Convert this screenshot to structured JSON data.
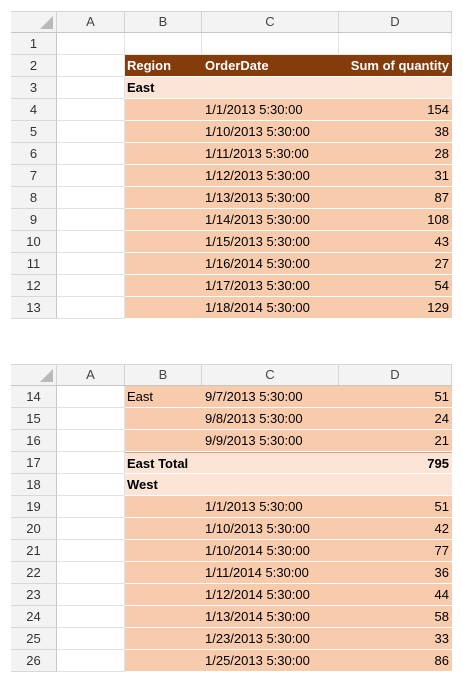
{
  "columns": [
    "A",
    "B",
    "C",
    "D"
  ],
  "top": {
    "header_row": {
      "num": "2",
      "region": "Region",
      "orderdate": "OrderDate",
      "sum": "Sum of quantity"
    },
    "empty_row_num": "1",
    "group_row": {
      "num": "3",
      "label": "East"
    },
    "rows": [
      {
        "num": "4",
        "date": "1/1/2013 5:30:00",
        "qty": "154"
      },
      {
        "num": "5",
        "date": "1/10/2013 5:30:00",
        "qty": "38"
      },
      {
        "num": "6",
        "date": "1/11/2013 5:30:00",
        "qty": "28"
      },
      {
        "num": "7",
        "date": "1/12/2013 5:30:00",
        "qty": "31"
      },
      {
        "num": "8",
        "date": "1/13/2013 5:30:00",
        "qty": "87"
      },
      {
        "num": "9",
        "date": "1/14/2013 5:30:00",
        "qty": "108"
      },
      {
        "num": "10",
        "date": "1/15/2013 5:30:00",
        "qty": "43"
      },
      {
        "num": "11",
        "date": "1/16/2014 5:30:00",
        "qty": "27"
      },
      {
        "num": "12",
        "date": "1/17/2013 5:30:00",
        "qty": "54"
      },
      {
        "num": "13",
        "date": "1/18/2014 5:30:00",
        "qty": "129"
      }
    ]
  },
  "bottom": {
    "rows_east": [
      {
        "num": "14",
        "region": "East",
        "date": "9/7/2013 5:30:00",
        "qty": "51"
      },
      {
        "num": "15",
        "region": "",
        "date": "9/8/2013 5:30:00",
        "qty": "24"
      },
      {
        "num": "16",
        "region": "",
        "date": "9/9/2013 5:30:00",
        "qty": "21"
      }
    ],
    "total_row": {
      "num": "17",
      "label": "East Total",
      "qty": "795"
    },
    "group_row": {
      "num": "18",
      "label": "West"
    },
    "rows_west": [
      {
        "num": "19",
        "date": "1/1/2013 5:30:00",
        "qty": "51"
      },
      {
        "num": "20",
        "date": "1/10/2013 5:30:00",
        "qty": "42"
      },
      {
        "num": "21",
        "date": "1/10/2014 5:30:00",
        "qty": "77"
      },
      {
        "num": "22",
        "date": "1/11/2014 5:30:00",
        "qty": "36"
      },
      {
        "num": "23",
        "date": "1/12/2014 5:30:00",
        "qty": "44"
      },
      {
        "num": "24",
        "date": "1/13/2014 5:30:00",
        "qty": "58"
      },
      {
        "num": "25",
        "date": "1/23/2013 5:30:00",
        "qty": "33"
      },
      {
        "num": "26",
        "date": "1/25/2013 5:30:00",
        "qty": "86"
      }
    ]
  },
  "colors": {
    "header_bg": "#843c0c",
    "label_bg": "#fce4d6",
    "data_bg": "#f8cbad"
  }
}
